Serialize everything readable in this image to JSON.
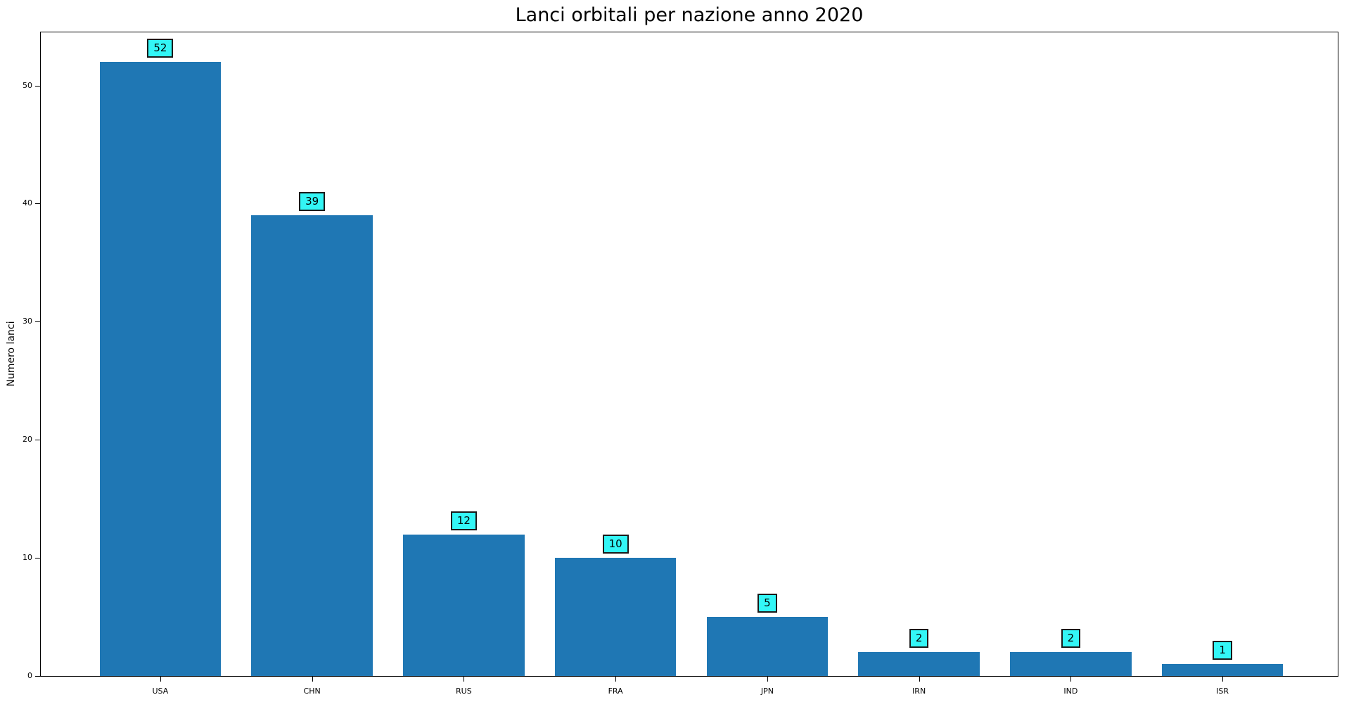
{
  "chart_data": {
    "type": "bar",
    "title": "Lanci orbitali per nazione anno 2020",
    "xlabel": "",
    "ylabel": "Numero lanci",
    "categories": [
      "USA",
      "CHN",
      "RUS",
      "FRA",
      "JPN",
      "IRN",
      "IND",
      "ISR"
    ],
    "values": [
      52,
      39,
      12,
      10,
      5,
      2,
      2,
      1
    ],
    "bar_labels": [
      "52",
      "39",
      "12",
      "10",
      "5",
      "2",
      "2",
      "1"
    ],
    "ylim": [
      0,
      54.5
    ],
    "yticks": [
      0,
      10,
      20,
      30,
      40,
      50
    ],
    "grid": false,
    "legend": false,
    "colors": {
      "bar_fill": "#1f77b4",
      "label_box_fill": "#33f6f6",
      "label_box_border": "#1a1a1a",
      "axis": "#000000",
      "text": "#000000",
      "background": "#ffffff"
    }
  }
}
